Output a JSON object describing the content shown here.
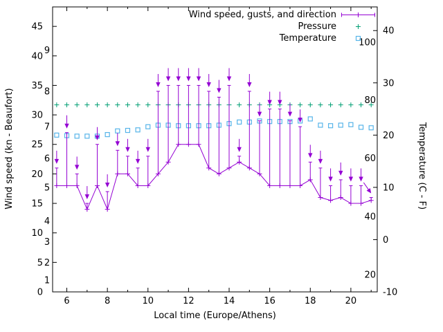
{
  "background": "#ffffff",
  "legend": {
    "items": [
      {
        "label": "Wind speed, gusts, and direction",
        "marker": "errorbar-plus",
        "color": "#9400d3"
      },
      {
        "label": "Pressure",
        "marker": "plus",
        "color": "#009e73"
      },
      {
        "label": "Temperature",
        "marker": "open-square",
        "color": "#56b4e9"
      }
    ]
  },
  "axes": {
    "x": {
      "label": "Local time (Europe/Athens)",
      "ticks": [
        6,
        8,
        10,
        12,
        14,
        16,
        18,
        20
      ],
      "minor_ticks": [
        7,
        9,
        11,
        13,
        15,
        17,
        19,
        21
      ]
    },
    "y_left": {
      "label": "Wind speed (kn - Beaufort)",
      "ticks": [
        0,
        5,
        10,
        15,
        20,
        25,
        30,
        35,
        40,
        45
      ],
      "beaufort_labels": [
        {
          "label": "1",
          "kn": 2
        },
        {
          "label": "2",
          "kn": 5
        },
        {
          "label": "3",
          "kn": 8.5
        },
        {
          "label": "4",
          "kn": 12
        },
        {
          "label": "5",
          "kn": 17.7
        },
        {
          "label": "6",
          "kn": 22.6
        },
        {
          "label": "7",
          "kn": 28
        },
        {
          "label": "8",
          "kn": 34
        },
        {
          "label": "9",
          "kn": 41
        }
      ]
    },
    "y_right": {
      "label": "Temperature (C - F)",
      "ticks": [
        -10,
        0,
        10,
        20,
        30,
        40
      ],
      "fahrenheit_labels": [
        {
          "label": "20",
          "c": -6.7
        },
        {
          "label": "40",
          "c": 4.4
        },
        {
          "label": "60",
          "c": 15.6
        },
        {
          "label": "80",
          "c": 26.7
        },
        {
          "label": "100",
          "c": 37.8
        }
      ]
    }
  },
  "chart_data": {
    "type": "line",
    "title": "",
    "xlabel": "Local time (Europe/Athens)",
    "ylabel_left": "Wind speed (kn - Beaufort)",
    "ylabel_right": "Temperature (C - F)",
    "xlim": [
      5.3,
      21.3
    ],
    "ylim_left": [
      0,
      48.3
    ],
    "ylim_right": [
      -10,
      44.53
    ],
    "grid": false,
    "legend_position": "top-right-inside",
    "x": [
      5.5,
      6,
      6.5,
      7,
      7.5,
      8,
      8.5,
      9,
      9.5,
      10,
      10.5,
      11,
      11.5,
      12,
      12.5,
      13,
      13.5,
      14,
      14.5,
      15,
      15.5,
      16,
      16.5,
      17,
      17.5,
      18,
      18.5,
      19,
      19.5,
      20,
      20.5,
      21
    ],
    "series": {
      "wind": {
        "name": "Wind speed, gusts, and direction",
        "axis": "left",
        "units": "kn",
        "color": "#9400d3",
        "speed": [
          18,
          18,
          18,
          14,
          18,
          14,
          20,
          20,
          18,
          18,
          20,
          22,
          25,
          25,
          25,
          21,
          20,
          21,
          22,
          21,
          20,
          18,
          18,
          18,
          18,
          19,
          16,
          15.5,
          16,
          15,
          15,
          15.5
        ],
        "gust": [
          21,
          27,
          20,
          15,
          25,
          17,
          24,
          23,
          21,
          23,
          34,
          35,
          35,
          35,
          35,
          34,
          33,
          35,
          23,
          34,
          29,
          31,
          31,
          29,
          28,
          22,
          21,
          18,
          19,
          18,
          18,
          16
        ],
        "arrow_angles": [
          0,
          0,
          0,
          0,
          0,
          0,
          0,
          0,
          0,
          0,
          0,
          0,
          0,
          0,
          0,
          0,
          0,
          0,
          0,
          0,
          0,
          0,
          0,
          0,
          0,
          0,
          0,
          0,
          0,
          0,
          0,
          -35
        ]
      },
      "pressure": {
        "name": "Pressure",
        "axis": "left",
        "color": "#009e73",
        "values": [
          31.7,
          31.7,
          31.7,
          31.7,
          31.7,
          31.7,
          31.7,
          31.7,
          31.7,
          31.7,
          31.7,
          31.7,
          31.7,
          31.7,
          31.7,
          31.7,
          31.7,
          31.7,
          31.7,
          31.7,
          31.7,
          31.7,
          31.7,
          31.7,
          31.7,
          31.7,
          31.7,
          31.7,
          31.7,
          31.7,
          31.7,
          31.7
        ]
      },
      "temperature": {
        "name": "Temperature",
        "axis": "right",
        "units": "C",
        "color": "#56b4e9",
        "values_c": [
          20.0,
          19.9,
          19.8,
          19.8,
          19.8,
          20.1,
          20.8,
          20.9,
          21.0,
          21.6,
          21.9,
          21.9,
          21.8,
          21.8,
          21.8,
          21.8,
          21.9,
          22.2,
          22.5,
          22.5,
          22.7,
          22.6,
          22.6,
          22.6,
          22.7,
          23.1,
          21.9,
          21.8,
          21.9,
          22.0,
          21.5,
          21.4
        ]
      }
    }
  }
}
